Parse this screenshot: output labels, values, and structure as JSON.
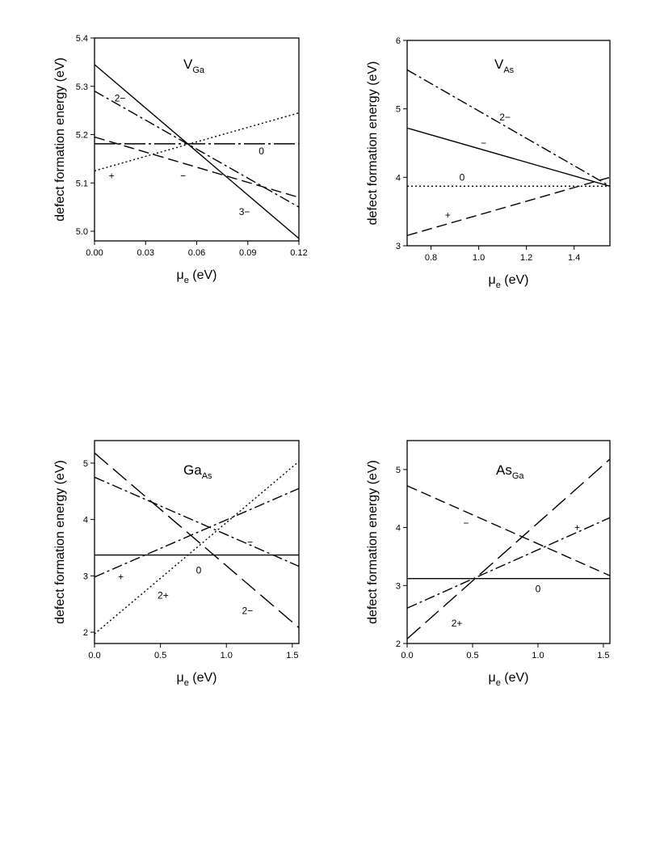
{
  "chart_data": [
    {
      "type": "line",
      "title": "V",
      "title_sub": "Ga",
      "xlabel": "μ",
      "xlabel_sub": "e",
      "xlabel_unit": "(eV)",
      "ylabel": "defect formation energy (eV)",
      "xlim": [
        0,
        0.12
      ],
      "ylim": [
        4.98,
        5.4
      ],
      "xticks": [
        0,
        0.03,
        0.06,
        0.09,
        0.12
      ],
      "xtick_labels": [
        "0.00",
        "0.03",
        "0.06",
        "0.09",
        "0.12"
      ],
      "yticks": [
        5.0,
        5.1,
        5.2,
        5.3,
        5.4
      ],
      "ytick_labels": [
        "5.0",
        "5.1",
        "5.2",
        "5.3",
        "5.4"
      ],
      "grid": false,
      "series": [
        {
          "label": "+",
          "x": [
            0,
            0.12
          ],
          "y": [
            5.125,
            5.245
          ],
          "dash": "2,3"
        },
        {
          "label": "0",
          "x": [
            0,
            0.12
          ],
          "y": [
            5.181,
            5.181
          ],
          "dash": "26,4,3,4"
        },
        {
          "label": "−",
          "x": [
            0,
            0.12
          ],
          "y": [
            5.195,
            5.07
          ],
          "dash": "13,6"
        },
        {
          "label": "2−",
          "x": [
            0,
            0.12
          ],
          "y": [
            5.29,
            5.05
          ],
          "dash": "13,4,3,4"
        },
        {
          "label": "3−",
          "x": [
            0,
            0.12
          ],
          "y": [
            5.345,
            4.985
          ],
          "dash": ""
        }
      ],
      "annotations": [
        {
          "text": "2−",
          "x": 0.015,
          "y": 5.275
        },
        {
          "text": "0",
          "x": 0.098,
          "y": 5.166
        },
        {
          "text": "+",
          "x": 0.01,
          "y": 5.115
        },
        {
          "text": "−",
          "x": 0.052,
          "y": 5.115
        },
        {
          "text": "3−",
          "x": 0.088,
          "y": 5.04
        }
      ]
    },
    {
      "type": "line",
      "title": "V",
      "title_sub": "As",
      "xlabel": "μ",
      "xlabel_sub": "e",
      "xlabel_unit": "(eV)",
      "ylabel": "defect formation energy (eV)",
      "xlim": [
        0.7,
        1.55
      ],
      "ylim": [
        3,
        6
      ],
      "xticks": [
        0.8,
        1.0,
        1.2,
        1.4
      ],
      "xtick_labels": [
        "0.8",
        "1.0",
        "1.2",
        "1.4"
      ],
      "yticks": [
        3,
        4,
        5,
        6
      ],
      "ytick_labels": [
        "3",
        "4",
        "5",
        "6"
      ],
      "grid": false,
      "series": [
        {
          "label": "2−",
          "x": [
            0.7,
            1.55
          ],
          "y": [
            5.57,
            3.87
          ],
          "dash": "13,4,3,4"
        },
        {
          "label": "−",
          "x": [
            0.7,
            1.55
          ],
          "y": [
            4.72,
            3.87
          ],
          "dash": ""
        },
        {
          "label": "0",
          "x": [
            0.7,
            1.55
          ],
          "y": [
            3.87,
            3.87
          ],
          "dash": "2,3"
        },
        {
          "label": "+",
          "x": [
            0.7,
            1.55
          ],
          "y": [
            3.15,
            4.0
          ],
          "dash": "13,6"
        }
      ],
      "annotations": [
        {
          "text": "2−",
          "x": 1.11,
          "y": 4.88
        },
        {
          "text": "−",
          "x": 1.02,
          "y": 4.5
        },
        {
          "text": "0",
          "x": 0.93,
          "y": 4.0
        },
        {
          "text": "+",
          "x": 0.87,
          "y": 3.45
        }
      ]
    },
    {
      "type": "line",
      "title": "Ga",
      "title_sub": "As",
      "xlabel": "μ",
      "xlabel_sub": "e",
      "xlabel_unit": "(eV)",
      "ylabel": "defect formation energy (eV)",
      "xlim": [
        0,
        1.55
      ],
      "ylim": [
        1.8,
        5.4
      ],
      "xticks": [
        0,
        0.5,
        1.0,
        1.5
      ],
      "xtick_labels": [
        "0.0",
        "0.5",
        "1.0",
        "1.5"
      ],
      "yticks": [
        2,
        3,
        4,
        5
      ],
      "ytick_labels": [
        "2",
        "3",
        "4",
        "5"
      ],
      "grid": false,
      "series": [
        {
          "label": "0",
          "x": [
            0,
            1.55
          ],
          "y": [
            3.37,
            3.37
          ],
          "dash": ""
        },
        {
          "label": "+",
          "x": [
            0,
            1.55
          ],
          "y": [
            2.98,
            4.55
          ],
          "dash": "13,4,3,4"
        },
        {
          "label": "2+",
          "x": [
            0,
            1.55
          ],
          "y": [
            1.97,
            5.03
          ],
          "dash": "2,3"
        },
        {
          "label": "−",
          "x": [
            0,
            1.55
          ],
          "y": [
            4.75,
            3.17
          ],
          "dash": "13,4,3,4"
        },
        {
          "label": "2−",
          "x": [
            0,
            1.55
          ],
          "y": [
            5.18,
            2.08
          ],
          "dash": "22,8"
        }
      ],
      "annotations": [
        {
          "text": "−",
          "x": 1.18,
          "y": 3.6
        },
        {
          "text": "0",
          "x": 0.79,
          "y": 3.1
        },
        {
          "text": "+",
          "x": 0.2,
          "y": 2.98
        },
        {
          "text": "2+",
          "x": 0.52,
          "y": 2.65
        },
        {
          "text": "2−",
          "x": 1.16,
          "y": 2.38
        }
      ]
    },
    {
      "type": "line",
      "title": "As",
      "title_sub": "Ga",
      "xlabel": "μ",
      "xlabel_sub": "e",
      "xlabel_unit": "(eV)",
      "ylabel": "defect formation energy (eV)",
      "xlim": [
        0,
        1.55
      ],
      "ylim": [
        2,
        5.5
      ],
      "xticks": [
        0,
        0.5,
        1.0,
        1.5
      ],
      "xtick_labels": [
        "0.0",
        "0.5",
        "1.0",
        "1.5"
      ],
      "yticks": [
        2,
        3,
        4,
        5
      ],
      "ytick_labels": [
        "2",
        "3",
        "4",
        "5"
      ],
      "grid": false,
      "series": [
        {
          "label": "0",
          "x": [
            0,
            1.55
          ],
          "y": [
            3.12,
            3.12
          ],
          "dash": ""
        },
        {
          "label": "−",
          "x": [
            0,
            1.55
          ],
          "y": [
            4.72,
            3.17
          ],
          "dash": "13,6"
        },
        {
          "label": "+",
          "x": [
            0,
            1.55
          ],
          "y": [
            2.61,
            4.17
          ],
          "dash": "13,4,3,4"
        },
        {
          "label": "2+",
          "x": [
            0,
            1.55
          ],
          "y": [
            2.08,
            5.18
          ],
          "dash": "22,8"
        }
      ],
      "annotations": [
        {
          "text": "−",
          "x": 0.45,
          "y": 4.08
        },
        {
          "text": "+",
          "x": 1.3,
          "y": 4.0
        },
        {
          "text": "0",
          "x": 1.0,
          "y": 2.94
        },
        {
          "text": "2+",
          "x": 0.38,
          "y": 2.35
        }
      ]
    }
  ]
}
